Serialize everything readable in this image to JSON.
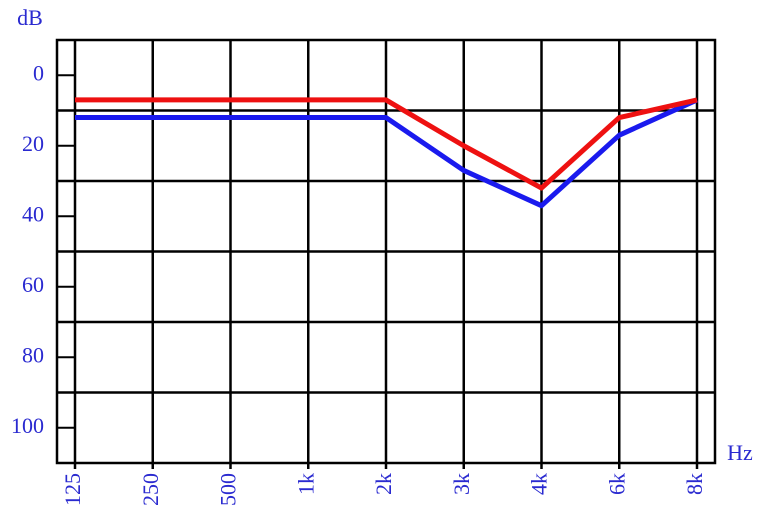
{
  "chart_data": {
    "type": "line",
    "y_label": "dB",
    "x_label": "Hz",
    "categories": [
      "125",
      "250",
      "500",
      "1k",
      "2k",
      "3k",
      "4k",
      "6k",
      "8k"
    ],
    "series": [
      {
        "color": "#ee1111",
        "values": [
          7,
          7,
          7,
          7,
          7,
          20,
          32,
          12,
          7
        ]
      },
      {
        "color": "#1a1aee",
        "values": [
          12,
          12,
          12,
          12,
          12,
          27,
          37,
          17,
          7
        ]
      }
    ],
    "ylim": [
      -10,
      110
    ],
    "y_inverted": true,
    "yticks": [
      0,
      20,
      40,
      60,
      80,
      100
    ],
    "ygrid": [
      10,
      30,
      50,
      70,
      90
    ],
    "grid": true
  }
}
